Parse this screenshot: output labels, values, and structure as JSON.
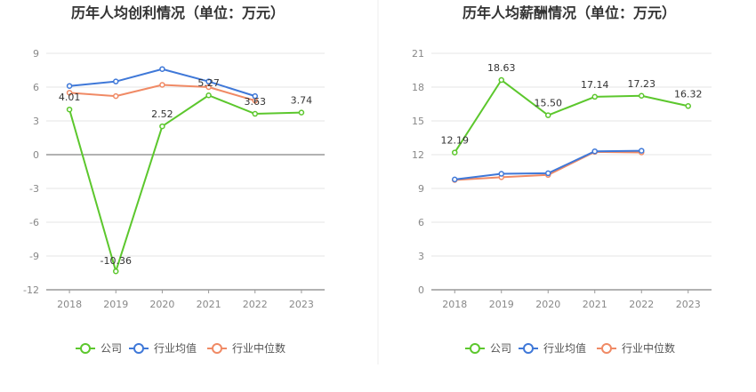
{
  "chart_data": [
    {
      "type": "line",
      "title": "历年人均创利情况（单位：万元）",
      "categories": [
        "2018",
        "2019",
        "2020",
        "2021",
        "2022",
        "2023"
      ],
      "yticks": [
        9,
        6,
        3,
        0,
        -3,
        -6,
        -9,
        -12
      ],
      "ylim": [
        -12,
        9
      ],
      "grid": true,
      "legend": "bottom",
      "series": [
        {
          "name": "公司",
          "color": "#5cc72d",
          "values": [
            4.01,
            -10.36,
            2.52,
            5.27,
            3.63,
            3.74
          ],
          "labels": [
            "4.01",
            "-10.36",
            "2.52",
            "5.27",
            "3.63",
            "3.74"
          ]
        },
        {
          "name": "行业均值",
          "color": "#3f78d8",
          "values": [
            6.1,
            6.5,
            7.6,
            6.5,
            5.2,
            null
          ]
        },
        {
          "name": "行业中位数",
          "color": "#f08a65",
          "values": [
            5.5,
            5.2,
            6.2,
            6.0,
            4.8,
            null
          ]
        }
      ]
    },
    {
      "type": "line",
      "title": "历年人均薪酬情况（单位：万元）",
      "categories": [
        "2018",
        "2019",
        "2020",
        "2021",
        "2022",
        "2023"
      ],
      "yticks": [
        21,
        18,
        15,
        12,
        9,
        6,
        3,
        0
      ],
      "ylim": [
        0,
        21
      ],
      "grid": true,
      "legend": "bottom",
      "series": [
        {
          "name": "公司",
          "color": "#5cc72d",
          "values": [
            12.19,
            18.63,
            15.5,
            17.14,
            17.23,
            16.32
          ],
          "labels": [
            "12.19",
            "18.63",
            "15.50",
            "17.14",
            "17.23",
            "16.32"
          ]
        },
        {
          "name": "行业均值",
          "color": "#3f78d8",
          "values": [
            9.8,
            10.3,
            10.35,
            12.3,
            12.35,
            null
          ]
        },
        {
          "name": "行业中位数",
          "color": "#f08a65",
          "values": [
            9.75,
            10.0,
            10.2,
            12.25,
            12.2,
            null
          ]
        }
      ]
    }
  ]
}
